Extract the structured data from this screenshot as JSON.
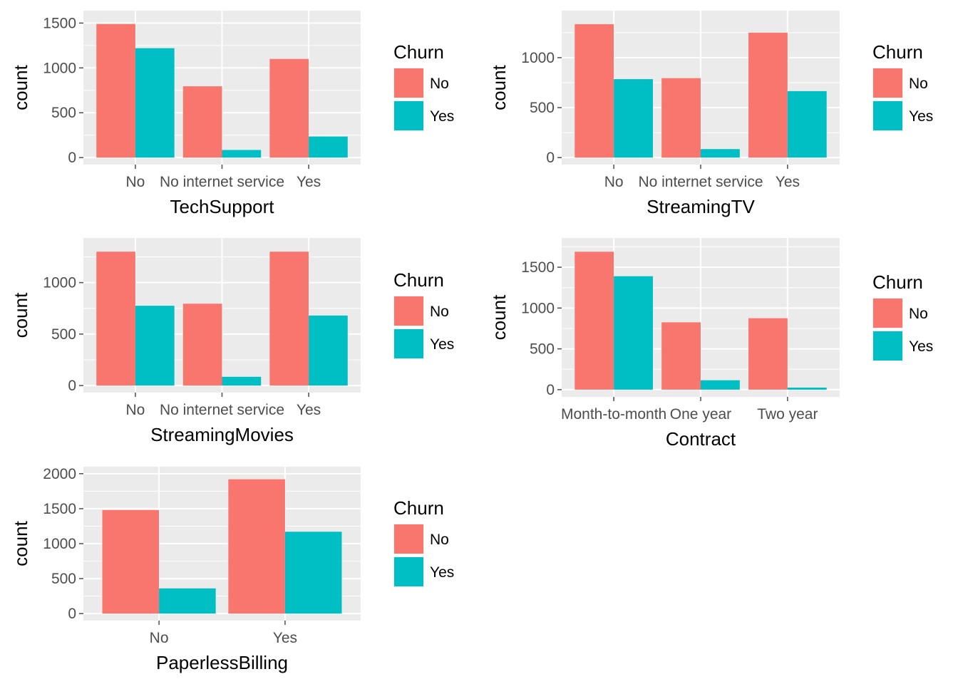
{
  "colors": {
    "no": "#F8766D",
    "yes": "#00BFC4",
    "panel": "#EBEBEB",
    "grid": "#FFFFFF",
    "tick": "#4D4D4D"
  },
  "chart_data": [
    {
      "type": "bar",
      "xlabel": "TechSupport",
      "ylabel": "count",
      "categories": [
        "No",
        "No internet service",
        "Yes"
      ],
      "series": [
        {
          "name": "No",
          "values": [
            1490,
            795,
            1100
          ]
        },
        {
          "name": "Yes",
          "values": [
            1220,
            85,
            235
          ]
        }
      ],
      "yticks": [
        0,
        500,
        1000,
        1500
      ],
      "ylim": [
        0,
        1560
      ],
      "legend": {
        "title": "Churn",
        "position": "right"
      },
      "grid": true
    },
    {
      "type": "bar",
      "xlabel": "StreamingTV",
      "ylabel": "count",
      "categories": [
        "No",
        "No internet service",
        "Yes"
      ],
      "series": [
        {
          "name": "No",
          "values": [
            1335,
            795,
            1250
          ]
        },
        {
          "name": "Yes",
          "values": [
            785,
            85,
            665
          ]
        }
      ],
      "yticks": [
        0,
        500,
        1000
      ],
      "ylim": [
        0,
        1400
      ],
      "legend": {
        "title": "Churn",
        "position": "right"
      },
      "grid": true
    },
    {
      "type": "bar",
      "xlabel": "StreamingMovies",
      "ylabel": "count",
      "categories": [
        "No",
        "No internet service",
        "Yes"
      ],
      "series": [
        {
          "name": "No",
          "values": [
            1300,
            795,
            1300
          ]
        },
        {
          "name": "Yes",
          "values": [
            775,
            85,
            680
          ]
        }
      ],
      "yticks": [
        0,
        500,
        1000
      ],
      "ylim": [
        0,
        1365
      ],
      "legend": {
        "title": "Churn",
        "position": "right"
      },
      "grid": true
    },
    {
      "type": "bar",
      "xlabel": "Contract",
      "ylabel": "count",
      "categories": [
        "Month-to-month",
        "One year",
        "Two year"
      ],
      "series": [
        {
          "name": "No",
          "values": [
            1690,
            825,
            875
          ]
        },
        {
          "name": "Yes",
          "values": [
            1390,
            115,
            25
          ]
        }
      ],
      "yticks": [
        0,
        500,
        1000,
        1500
      ],
      "ylim": [
        0,
        1770
      ],
      "legend": {
        "title": "Churn",
        "position": "right"
      },
      "grid": true
    },
    {
      "type": "bar",
      "xlabel": "PaperlessBilling",
      "ylabel": "count",
      "categories": [
        "No",
        "Yes"
      ],
      "series": [
        {
          "name": "No",
          "values": [
            1480,
            1920
          ]
        },
        {
          "name": "Yes",
          "values": [
            360,
            1170
          ]
        }
      ],
      "yticks": [
        0,
        500,
        1000,
        1500,
        2000
      ],
      "ylim": [
        0,
        2000
      ],
      "legend": {
        "title": "Churn",
        "position": "right"
      },
      "grid": true
    }
  ]
}
